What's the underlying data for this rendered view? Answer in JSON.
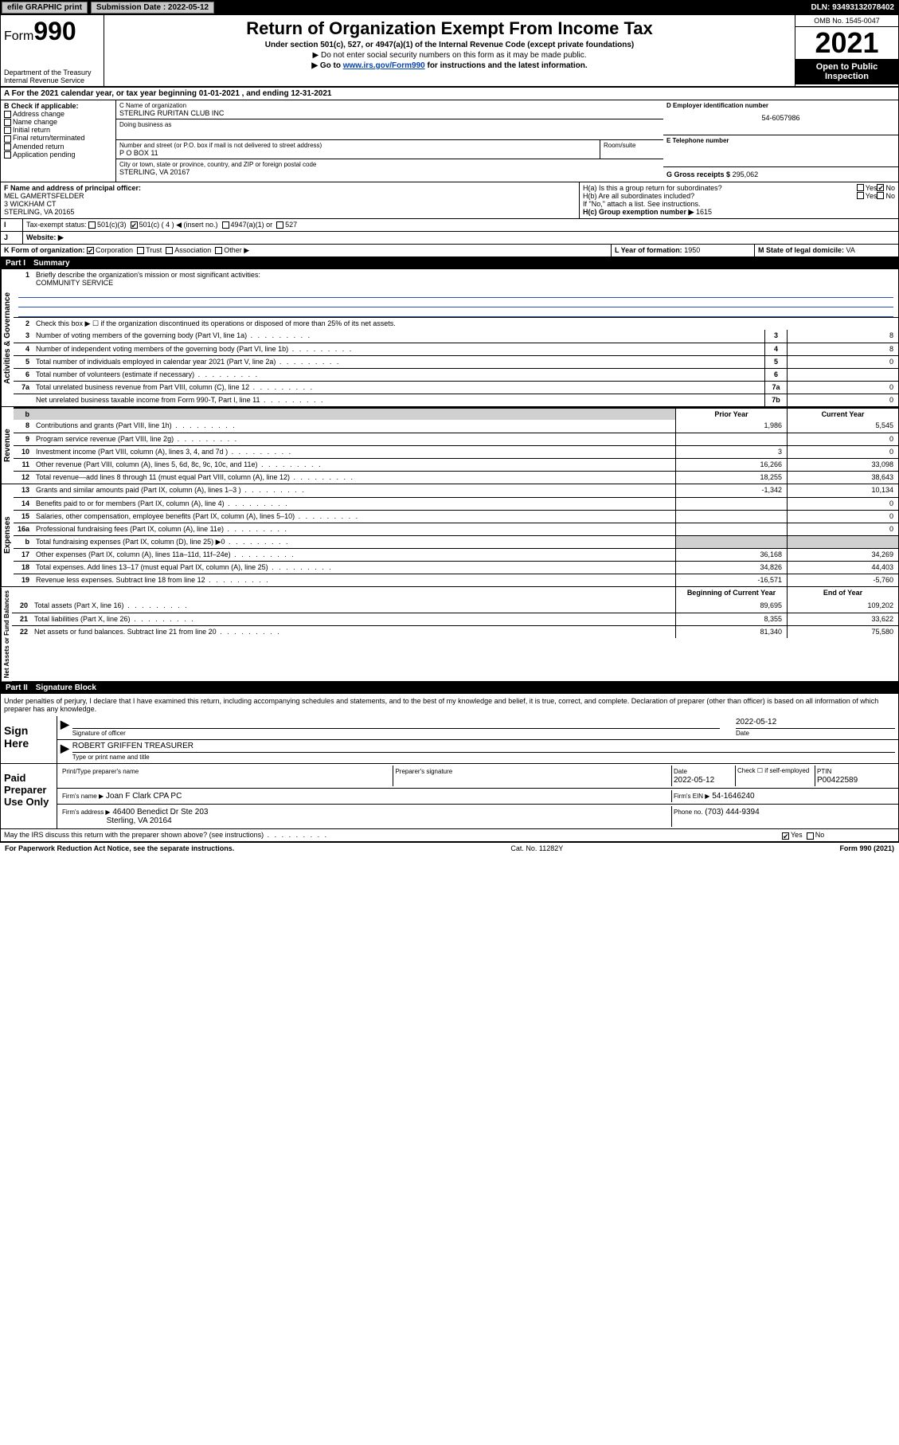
{
  "topbar": {
    "efile": "efile GRAPHIC print",
    "submission_label": "Submission Date : 2022-05-12",
    "dln": "DLN: 93493132078402"
  },
  "header": {
    "form_prefix": "Form",
    "form_number": "990",
    "dept": "Department of the Treasury",
    "irs": "Internal Revenue Service",
    "title": "Return of Organization Exempt From Income Tax",
    "subtitle": "Under section 501(c), 527, or 4947(a)(1) of the Internal Revenue Code (except private foundations)",
    "note1": "▶ Do not enter social security numbers on this form as it may be made public.",
    "note2_pre": "▶ Go to ",
    "note2_link": "www.irs.gov/Form990",
    "note2_post": " for instructions and the latest information.",
    "omb": "OMB No. 1545-0047",
    "year": "2021",
    "open": "Open to Public Inspection"
  },
  "period": "For the 2021 calendar year, or tax year beginning 01-01-2021   , and ending 12-31-2021",
  "boxA": {
    "label": "A",
    "title": "B Check if applicable:",
    "opts": [
      "Address change",
      "Name change",
      "Initial return",
      "Final return/terminated",
      "Amended return",
      "Application pending"
    ]
  },
  "boxC": {
    "name_label": "C Name of organization",
    "name": "STERLING RURITAN CLUB INC",
    "dba_label": "Doing business as",
    "street_label": "Number and street (or P.O. box if mail is not delivered to street address)",
    "room_label": "Room/suite",
    "street": "P O BOX 11",
    "city_label": "City or town, state or province, country, and ZIP or foreign postal code",
    "city": "STERLING, VA  20167"
  },
  "boxD": {
    "label": "D Employer identification number",
    "value": "54-6057986"
  },
  "boxE": {
    "label": "E Telephone number",
    "value": ""
  },
  "boxG": {
    "label": "G Gross receipts $",
    "value": "295,062"
  },
  "boxF": {
    "label": "F  Name and address of principal officer:",
    "name": "MEL GAMERTSFELDER",
    "addr1": "3 WICKHAM CT",
    "addr2": "STERLING, VA  20165"
  },
  "boxH": {
    "a": "H(a)  Is this a group return for subordinates?",
    "b": "H(b)  Are all subordinates included?",
    "note": "If \"No,\" attach a list. See instructions.",
    "c_label": "H(c)  Group exemption number ▶",
    "c_val": "1615",
    "yes": "Yes",
    "no": "No"
  },
  "boxI": {
    "label": "Tax-exempt status:",
    "o1": "501(c)(3)",
    "o2": "501(c) ( 4 ) ◀ (insert no.)",
    "o3": "4947(a)(1) or",
    "o4": "527"
  },
  "boxJ": {
    "label": "Website: ▶"
  },
  "boxK": {
    "label": "K Form of organization:",
    "opts": [
      "Corporation",
      "Trust",
      "Association",
      "Other ▶"
    ]
  },
  "boxL": {
    "label": "L Year of formation:",
    "value": "1950"
  },
  "boxM": {
    "label": "M State of legal domicile:",
    "value": "VA"
  },
  "part1": {
    "num": "Part I",
    "title": "Summary"
  },
  "summary": {
    "mission_label": "Briefly describe the organization's mission or most significant activities:",
    "mission": "COMMUNITY SERVICE",
    "l2": "Check this box ▶ ☐  if the organization discontinued its operations or disposed of more than 25% of its net assets.",
    "lines_gov": [
      {
        "n": "3",
        "t": "Number of voting members of the governing body (Part VI, line 1a)",
        "box": "3",
        "v": "8"
      },
      {
        "n": "4",
        "t": "Number of independent voting members of the governing body (Part VI, line 1b)",
        "box": "4",
        "v": "8"
      },
      {
        "n": "5",
        "t": "Total number of individuals employed in calendar year 2021 (Part V, line 2a)",
        "box": "5",
        "v": "0"
      },
      {
        "n": "6",
        "t": "Total number of volunteers (estimate if necessary)",
        "box": "6",
        "v": ""
      },
      {
        "n": "7a",
        "t": "Total unrelated business revenue from Part VIII, column (C), line 12",
        "box": "7a",
        "v": "0"
      },
      {
        "n": "",
        "t": "Net unrelated business taxable income from Form 990-T, Part I, line 11",
        "box": "7b",
        "v": "0"
      }
    ],
    "col_prior": "Prior Year",
    "col_current": "Current Year",
    "revenue": [
      {
        "n": "8",
        "t": "Contributions and grants (Part VIII, line 1h)",
        "p": "1,986",
        "c": "5,545"
      },
      {
        "n": "9",
        "t": "Program service revenue (Part VIII, line 2g)",
        "p": "",
        "c": "0"
      },
      {
        "n": "10",
        "t": "Investment income (Part VIII, column (A), lines 3, 4, and 7d )",
        "p": "3",
        "c": "0"
      },
      {
        "n": "11",
        "t": "Other revenue (Part VIII, column (A), lines 5, 6d, 8c, 9c, 10c, and 11e)",
        "p": "16,266",
        "c": "33,098"
      },
      {
        "n": "12",
        "t": "Total revenue—add lines 8 through 11 (must equal Part VIII, column (A), line 12)",
        "p": "18,255",
        "c": "38,643"
      }
    ],
    "expenses": [
      {
        "n": "13",
        "t": "Grants and similar amounts paid (Part IX, column (A), lines 1–3 )",
        "p": "-1,342",
        "c": "10,134"
      },
      {
        "n": "14",
        "t": "Benefits paid to or for members (Part IX, column (A), line 4)",
        "p": "",
        "c": "0"
      },
      {
        "n": "15",
        "t": "Salaries, other compensation, employee benefits (Part IX, column (A), lines 5–10)",
        "p": "",
        "c": "0"
      },
      {
        "n": "16a",
        "t": "Professional fundraising fees (Part IX, column (A), line 11e)",
        "p": "",
        "c": "0"
      },
      {
        "n": "b",
        "t": "Total fundraising expenses (Part IX, column (D), line 25) ▶0",
        "p": "shade",
        "c": "shade"
      },
      {
        "n": "17",
        "t": "Other expenses (Part IX, column (A), lines 11a–11d, 11f–24e)",
        "p": "36,168",
        "c": "34,269"
      },
      {
        "n": "18",
        "t": "Total expenses. Add lines 13–17 (must equal Part IX, column (A), line 25)",
        "p": "34,826",
        "c": "44,403"
      },
      {
        "n": "19",
        "t": "Revenue less expenses. Subtract line 18 from line 12",
        "p": "-16,571",
        "c": "-5,760"
      }
    ],
    "col_begin": "Beginning of Current Year",
    "col_end": "End of Year",
    "netassets": [
      {
        "n": "20",
        "t": "Total assets (Part X, line 16)",
        "p": "89,695",
        "c": "109,202"
      },
      {
        "n": "21",
        "t": "Total liabilities (Part X, line 26)",
        "p": "8,355",
        "c": "33,622"
      },
      {
        "n": "22",
        "t": "Net assets or fund balances. Subtract line 21 from line 20",
        "p": "81,340",
        "c": "75,580"
      }
    ]
  },
  "sidelabels": {
    "gov": "Activities & Governance",
    "rev": "Revenue",
    "exp": "Expenses",
    "net": "Net Assets or Fund Balances"
  },
  "part2": {
    "num": "Part II",
    "title": "Signature Block"
  },
  "sig": {
    "decl": "Under penalties of perjury, I declare that I have examined this return, including accompanying schedules and statements, and to the best of my knowledge and belief, it is true, correct, and complete. Declaration of preparer (other than officer) is based on all information of which preparer has any knowledge.",
    "here": "Sign Here",
    "officer_sig": "Signature of officer",
    "officer_date": "2022-05-12",
    "date_lbl": "Date",
    "officer_name": "ROBERT GRIFFEN  TREASURER",
    "officer_name_lbl": "Type or print name and title",
    "paid": "Paid Preparer Use Only",
    "prep_name_lbl": "Print/Type preparer's name",
    "prep_sig_lbl": "Preparer's signature",
    "prep_date": "2022-05-12",
    "check_lbl": "Check ☐ if self-employed",
    "ptin_lbl": "PTIN",
    "ptin": "P00422589",
    "firm_name_lbl": "Firm's name    ▶",
    "firm_name": "Joan F Clark CPA PC",
    "firm_ein_lbl": "Firm's EIN ▶",
    "firm_ein": "54-1646240",
    "firm_addr_lbl": "Firm's address ▶",
    "firm_addr1": "46400 Benedict Dr Ste 203",
    "firm_addr2": "Sterling, VA  20164",
    "phone_lbl": "Phone no.",
    "phone": "(703) 444-9394",
    "discuss": "May the IRS discuss this return with the preparer shown above? (see instructions)",
    "yes": "Yes",
    "no": "No"
  },
  "footer": {
    "left": "For Paperwork Reduction Act Notice, see the separate instructions.",
    "mid": "Cat. No. 11282Y",
    "right": "Form 990 (2021)"
  }
}
